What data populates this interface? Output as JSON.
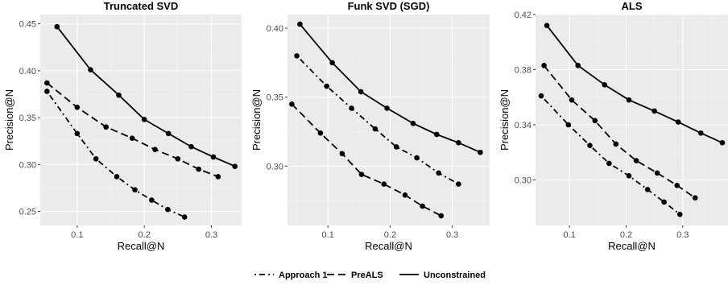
{
  "chart_data": [
    {
      "type": "line",
      "title": "Truncated SVD",
      "xlabel": "Recall@N",
      "ylabel": "Precision@N",
      "xlim": [
        0.045,
        0.345
      ],
      "ylim": [
        0.235,
        0.46
      ],
      "xticks": [
        0.1,
        0.2,
        0.3
      ],
      "xtick_labels": [
        "0.1",
        "0.2",
        "0.3"
      ],
      "yticks": [
        0.25,
        0.3,
        0.35,
        0.4,
        0.45
      ],
      "ytick_labels": [
        "0.25",
        "0.30",
        "0.35",
        "0.40",
        "0.45"
      ],
      "grid": true,
      "series": [
        {
          "name": "Approach 1",
          "linetype": "dotdash",
          "x": [
            0.055,
            0.1,
            0.128,
            0.159,
            0.186,
            0.211,
            0.235,
            0.26
          ],
          "y": [
            0.378,
            0.333,
            0.306,
            0.287,
            0.273,
            0.262,
            0.252,
            0.244
          ]
        },
        {
          "name": "PreALS",
          "linetype": "longdash",
          "x": [
            0.055,
            0.1,
            0.143,
            0.182,
            0.216,
            0.25,
            0.281,
            0.31
          ],
          "y": [
            0.387,
            0.361,
            0.34,
            0.328,
            0.316,
            0.306,
            0.295,
            0.287
          ]
        },
        {
          "name": "Unconstrained",
          "linetype": "solid",
          "x": [
            0.07,
            0.12,
            0.162,
            0.2,
            0.236,
            0.27,
            0.303,
            0.335
          ],
          "y": [
            0.447,
            0.401,
            0.374,
            0.348,
            0.333,
            0.319,
            0.308,
            0.298
          ]
        }
      ]
    },
    {
      "type": "line",
      "title": "Funk SVD (SGD)",
      "xlabel": "Recall@N",
      "ylabel": "Precision@N",
      "xlim": [
        0.035,
        0.36
      ],
      "ylim": [
        0.257,
        0.41
      ],
      "xticks": [
        0.1,
        0.2,
        0.3
      ],
      "xtick_labels": [
        "0.1",
        "0.2",
        "0.3"
      ],
      "yticks": [
        0.3,
        0.35,
        0.4
      ],
      "ytick_labels": [
        "0.30",
        "0.35",
        "0.40"
      ],
      "grid": true,
      "series": [
        {
          "name": "Approach 1",
          "linetype": "dotdash",
          "x": [
            0.05,
            0.098,
            0.138,
            0.176,
            0.21,
            0.243,
            0.278,
            0.31
          ],
          "y": [
            0.38,
            0.358,
            0.342,
            0.327,
            0.314,
            0.306,
            0.295,
            0.287
          ]
        },
        {
          "name": "PreALS",
          "linetype": "longdash",
          "x": [
            0.042,
            0.088,
            0.123,
            0.154,
            0.19,
            0.224,
            0.252,
            0.282
          ],
          "y": [
            0.345,
            0.324,
            0.309,
            0.294,
            0.287,
            0.279,
            0.271,
            0.264
          ]
        },
        {
          "name": "Unconstrained",
          "linetype": "solid",
          "x": [
            0.055,
            0.107,
            0.153,
            0.195,
            0.237,
            0.275,
            0.31,
            0.345
          ],
          "y": [
            0.403,
            0.375,
            0.354,
            0.342,
            0.331,
            0.323,
            0.317,
            0.31
          ]
        }
      ]
    },
    {
      "type": "line",
      "title": "ALS",
      "xlabel": "Recall@N",
      "ylabel": "Precision@N",
      "xlim": [
        0.04,
        0.38
      ],
      "ylim": [
        0.267,
        0.42
      ],
      "xticks": [
        0.1,
        0.2,
        0.3
      ],
      "xtick_labels": [
        "0.1",
        "0.2",
        "0.3"
      ],
      "yticks": [
        0.3,
        0.34,
        0.38,
        0.42
      ],
      "ytick_labels": [
        "0.30",
        "0.34",
        "0.38",
        "0.42"
      ],
      "grid": true,
      "series": [
        {
          "name": "Approach 1",
          "linetype": "dotdash",
          "x": [
            0.05,
            0.098,
            0.136,
            0.17,
            0.205,
            0.238,
            0.267,
            0.295
          ],
          "y": [
            0.361,
            0.34,
            0.325,
            0.312,
            0.303,
            0.293,
            0.284,
            0.275
          ]
        },
        {
          "name": "PreALS",
          "linetype": "longdash",
          "x": [
            0.055,
            0.104,
            0.145,
            0.182,
            0.218,
            0.255,
            0.29,
            0.322
          ],
          "y": [
            0.383,
            0.358,
            0.343,
            0.326,
            0.314,
            0.305,
            0.296,
            0.287
          ]
        },
        {
          "name": "Unconstrained",
          "linetype": "solid",
          "x": [
            0.06,
            0.115,
            0.162,
            0.205,
            0.25,
            0.292,
            0.332,
            0.37
          ],
          "y": [
            0.412,
            0.383,
            0.369,
            0.358,
            0.35,
            0.342,
            0.334,
            0.327
          ]
        }
      ]
    }
  ],
  "legend": {
    "position": "bottom",
    "items": [
      {
        "label": "Approach 1",
        "linetype": "dotdash"
      },
      {
        "label": "PreALS",
        "linetype": "longdash"
      },
      {
        "label": "Unconstrained",
        "linetype": "solid"
      }
    ]
  },
  "colors": {
    "panel_background": "#ebebeb",
    "grid_major": "#ffffff",
    "grid_minor": "#f5f5f5",
    "line": "#000000"
  }
}
